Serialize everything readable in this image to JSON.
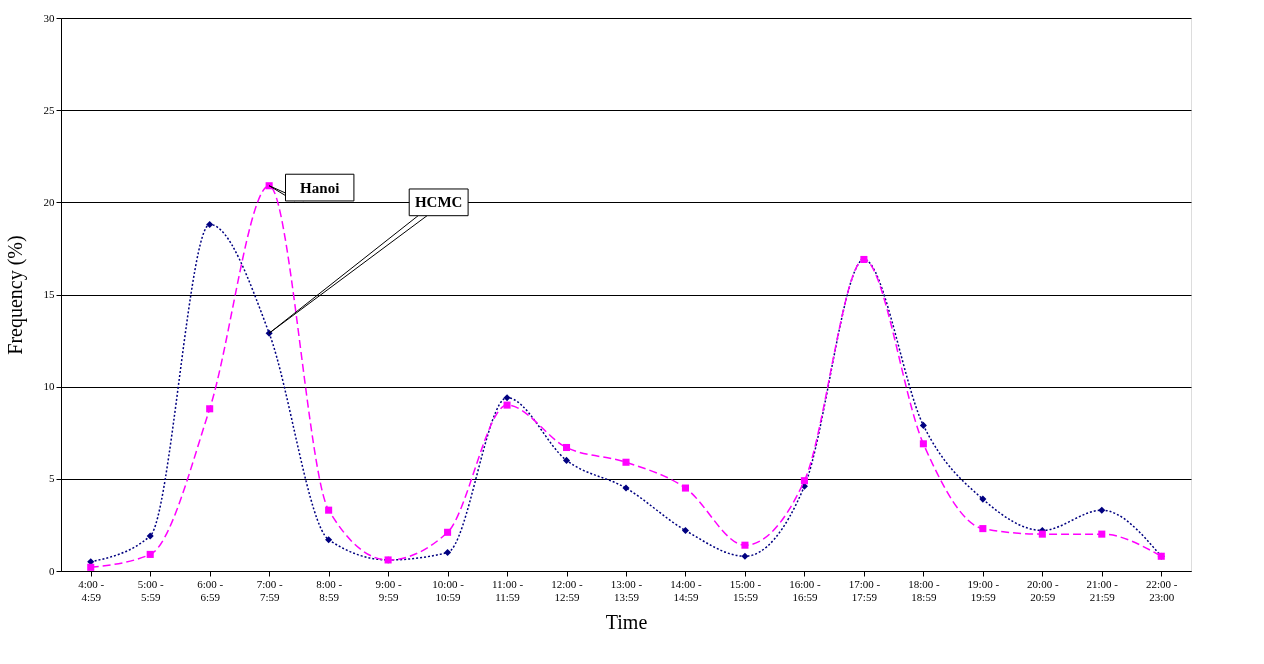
{
  "chart_data": {
    "type": "line",
    "xlabel": "Time",
    "ylabel": "Frequency (%)",
    "categories": [
      "4:00 - 4:59",
      "5:00 - 5:59",
      "6:00 - 6:59",
      "7:00 - 7:59",
      "8:00 - 8:59",
      "9:00 - 9:59",
      "10:00 - 10:59",
      "11:00 - 11:59",
      "12:00 - 12:59",
      "13:00 - 13:59",
      "14:00 - 14:59",
      "15:00 - 15:59",
      "16:00 - 16:59",
      "17:00 - 17:59",
      "18:00 - 18:59",
      "19:00 - 19:59",
      "20:00 - 20:59",
      "21:00 - 21:59",
      "22:00 - 23:00"
    ],
    "series": [
      {
        "color": "#000080",
        "marker": "diamond",
        "line_style": "dotted",
        "values": [
          0.5,
          1.9,
          18.8,
          12.9,
          1.7,
          0.6,
          1.0,
          9.4,
          6.0,
          4.5,
          2.2,
          0.8,
          4.6,
          16.9,
          7.9,
          3.9,
          2.2,
          3.3,
          0.8
        ]
      },
      {
        "color": "#ff00ff",
        "marker": "square",
        "line_style": "dashed",
        "values": [
          0.2,
          0.9,
          8.8,
          20.9,
          3.3,
          0.6,
          2.1,
          9.0,
          6.7,
          5.9,
          4.5,
          1.4,
          4.9,
          16.9,
          6.9,
          2.3,
          2.0,
          2.0,
          0.8
        ]
      }
    ],
    "ylim": [
      0,
      30
    ],
    "yticks": [
      0,
      5,
      10,
      15,
      20,
      25,
      30
    ],
    "grid": "y",
    "annotations": [
      {
        "text": "Hanoi",
        "x": "7:00 - 7:59",
        "y": 20.9
      },
      {
        "text": "HCMC",
        "x": "7:00 - 7:59",
        "y": 12.9
      }
    ]
  }
}
